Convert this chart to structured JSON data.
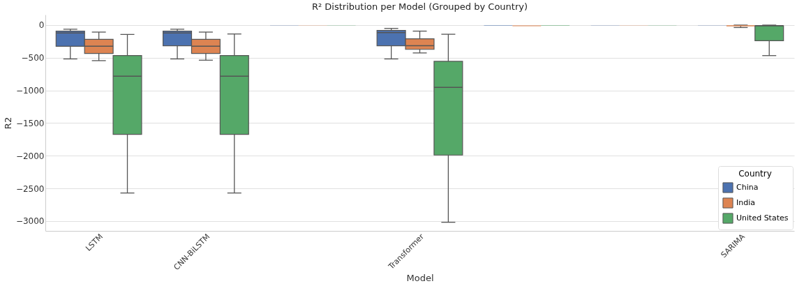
{
  "chart_data": {
    "type": "box",
    "title": "R² Distribution per Model (Grouped by Country)",
    "xlabel": "Model",
    "ylabel": "R2",
    "legend_title": "Country",
    "legend": "bottom right",
    "grid": "y",
    "categories": [
      "LSTM",
      "CNN-BiLSTM",
      null,
      "Transformer",
      null,
      null,
      "SARIMA"
    ],
    "ylim": [
      -3150,
      160
    ],
    "yticks": [
      -3000,
      -2500,
      -2000,
      -1500,
      -1000,
      -500,
      0
    ],
    "series": [
      {
        "name": "China",
        "color": "#4c72b0",
        "boxes": [
          {
            "low": -518,
            "q1": -324,
            "median": -121,
            "q3": -92,
            "high": -63
          },
          {
            "low": -518,
            "q1": -316,
            "median": -121,
            "q3": -92,
            "high": -63
          },
          {
            "low": -10,
            "q1": -6,
            "median": -4,
            "q3": -2,
            "high": 0
          },
          {
            "low": -518,
            "q1": -316,
            "median": -114,
            "q3": -81,
            "high": -51
          },
          {
            "low": -15,
            "q1": -8,
            "median": -5,
            "q3": -2,
            "high": 0
          },
          {
            "low": -8,
            "q1": -4,
            "median": -2,
            "q3": -1,
            "high": 0
          },
          {
            "low": -8,
            "q1": -4,
            "median": -2,
            "q3": -1,
            "high": 0
          }
        ]
      },
      {
        "name": "India",
        "color": "#dd8452",
        "boxes": [
          {
            "low": -544,
            "q1": -434,
            "median": -324,
            "q3": -217,
            "high": -107
          },
          {
            "low": -537,
            "q1": -434,
            "median": -324,
            "q3": -217,
            "high": -107
          },
          {
            "low": -10,
            "q1": -6,
            "median": -4,
            "q3": -2,
            "high": 0
          },
          {
            "low": -426,
            "q1": -371,
            "median": -316,
            "q3": -210,
            "high": -92
          },
          {
            "low": -25,
            "q1": -15,
            "median": -10,
            "q3": -5,
            "high": 0
          },
          {
            "low": -8,
            "q1": -4,
            "median": -2,
            "q3": -1,
            "high": 0
          },
          {
            "low": -37,
            "q1": -18,
            "median": -10,
            "q3": -3,
            "high": 0
          }
        ]
      },
      {
        "name": "United States",
        "color": "#55a868",
        "boxes": [
          {
            "low": -2570,
            "q1": -1673,
            "median": -783,
            "q3": -467,
            "high": -143
          },
          {
            "low": -2570,
            "q1": -1673,
            "median": -783,
            "q3": -467,
            "high": -136
          },
          {
            "low": -10,
            "q1": -6,
            "median": -4,
            "q3": -2,
            "high": 0
          },
          {
            "low": -3018,
            "q1": -1989,
            "median": -952,
            "q3": -555,
            "high": -140
          },
          {
            "low": -15,
            "q1": -8,
            "median": -5,
            "q3": -2,
            "high": 0
          },
          {
            "low": -8,
            "q1": -4,
            "median": -2,
            "q3": -1,
            "high": 0
          },
          {
            "low": -467,
            "q1": -239,
            "median": -8,
            "q3": -11,
            "high": 0
          }
        ]
      }
    ]
  }
}
